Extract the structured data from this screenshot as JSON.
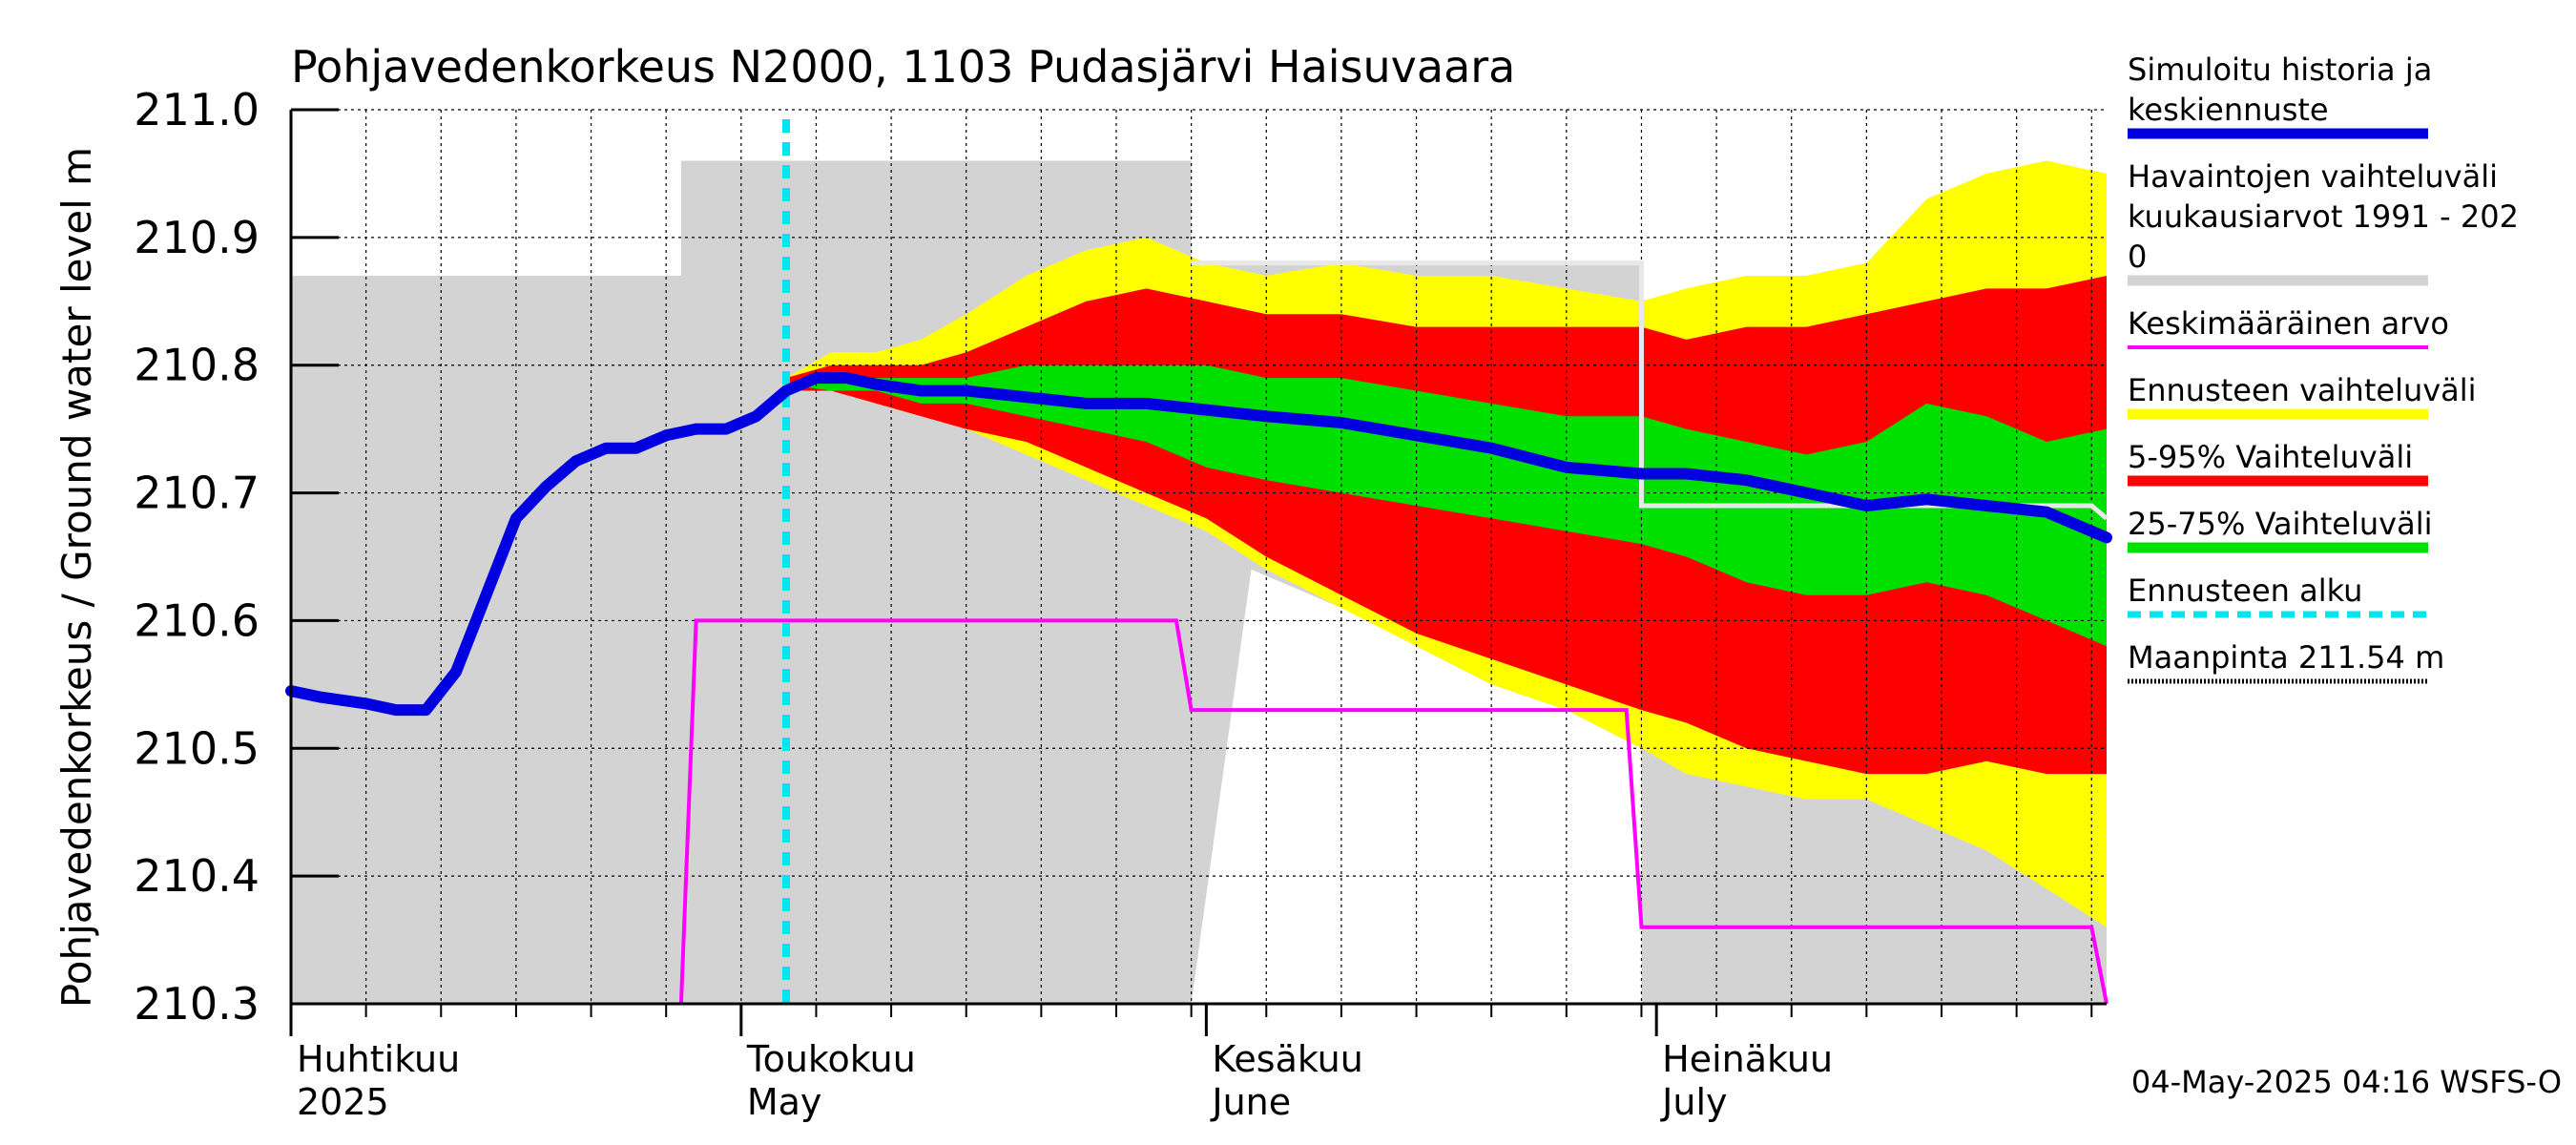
{
  "chart_data": {
    "type": "area",
    "title": "Pohjavedenkorkeus N2000, 1103 Pudasjärvi Haisuvaara",
    "ylabel": "Pohjavedenkorkeus / Ground water level   m",
    "ylim": [
      210.3,
      211.0
    ],
    "yticks": [
      "210.3",
      "210.4",
      "210.5",
      "210.6",
      "210.7",
      "210.8",
      "210.9",
      "211.0"
    ],
    "xlim": [
      "2025-04-01",
      "2025-07-31"
    ],
    "grid": true,
    "month_labels": [
      {
        "date": "2025-04-01",
        "line1": "Huhtikuu",
        "line2": "2025"
      },
      {
        "date": "2025-05-01",
        "line1": "Toukokuu",
        "line2": "May"
      },
      {
        "date": "2025-06-01",
        "line1": "Kesäkuu",
        "line2": "June"
      },
      {
        "date": "2025-07-01",
        "line1": "Heinäkuu",
        "line2": "July"
      }
    ],
    "forecast_start": "2025-05-04",
    "observed_range": {
      "name": "Havaintojen vaihteluväli kuukausiarvot 1991 - 2020",
      "upper": [
        [
          "2025-04-01",
          210.87
        ],
        [
          "2025-04-27",
          210.87
        ],
        [
          "2025-04-27",
          210.96
        ],
        [
          "2025-05-31",
          210.96
        ],
        [
          "2025-05-31",
          210.88
        ],
        [
          "2025-06-30",
          210.88
        ],
        [
          "2025-06-30",
          210.3
        ],
        [
          "2025-07-31",
          210.3
        ]
      ],
      "lower": [
        [
          "2025-04-01",
          210.3
        ],
        [
          "2025-05-31",
          210.3
        ],
        [
          "2025-06-04",
          210.64
        ],
        [
          "2025-06-12",
          210.6
        ],
        [
          "2025-06-20",
          210.56
        ],
        [
          "2025-06-30",
          210.51
        ],
        [
          "2025-07-10",
          210.48
        ],
        [
          "2025-07-20",
          210.44
        ],
        [
          "2025-07-31",
          210.39
        ]
      ]
    },
    "prediction_range": {
      "name": "Ennusteen vaihteluväli",
      "x": [
        "2025-05-04",
        "2025-05-07",
        "2025-05-10",
        "2025-05-13",
        "2025-05-16",
        "2025-05-20",
        "2025-05-24",
        "2025-05-28",
        "2025-06-01",
        "2025-06-05",
        "2025-06-10",
        "2025-06-15",
        "2025-06-20",
        "2025-06-25",
        "2025-06-30",
        "2025-07-03",
        "2025-07-07",
        "2025-07-11",
        "2025-07-15",
        "2025-07-19",
        "2025-07-23",
        "2025-07-27",
        "2025-07-31"
      ],
      "upper": [
        210.79,
        210.81,
        210.81,
        210.82,
        210.84,
        210.87,
        210.89,
        210.9,
        210.88,
        210.87,
        210.88,
        210.87,
        210.87,
        210.86,
        210.85,
        210.86,
        210.87,
        210.87,
        210.88,
        210.93,
        210.95,
        210.96,
        210.95
      ],
      "lower": [
        210.78,
        210.78,
        210.77,
        210.76,
        210.75,
        210.73,
        210.71,
        210.69,
        210.67,
        210.64,
        210.61,
        210.58,
        210.55,
        210.53,
        210.5,
        210.48,
        210.47,
        210.46,
        210.46,
        210.44,
        210.42,
        210.39,
        210.36
      ]
    },
    "p5_95": {
      "name": "5-95% Vaihteluväli",
      "x": [
        "2025-05-04",
        "2025-05-07",
        "2025-05-10",
        "2025-05-13",
        "2025-05-16",
        "2025-05-20",
        "2025-05-24",
        "2025-05-28",
        "2025-06-01",
        "2025-06-05",
        "2025-06-10",
        "2025-06-15",
        "2025-06-20",
        "2025-06-25",
        "2025-06-30",
        "2025-07-03",
        "2025-07-07",
        "2025-07-11",
        "2025-07-15",
        "2025-07-19",
        "2025-07-23",
        "2025-07-27",
        "2025-07-31"
      ],
      "upper": [
        210.79,
        210.8,
        210.8,
        210.8,
        210.81,
        210.83,
        210.85,
        210.86,
        210.85,
        210.84,
        210.84,
        210.83,
        210.83,
        210.83,
        210.83,
        210.82,
        210.83,
        210.83,
        210.84,
        210.85,
        210.86,
        210.86,
        210.87
      ],
      "lower": [
        210.78,
        210.78,
        210.77,
        210.76,
        210.75,
        210.74,
        210.72,
        210.7,
        210.68,
        210.65,
        210.62,
        210.59,
        210.57,
        210.55,
        210.53,
        210.52,
        210.5,
        210.49,
        210.48,
        210.48,
        210.49,
        210.48,
        210.48
      ]
    },
    "p25_75": {
      "name": "25-75% Vaihteluväli",
      "x": [
        "2025-05-04",
        "2025-05-07",
        "2025-05-10",
        "2025-05-13",
        "2025-05-16",
        "2025-05-20",
        "2025-05-24",
        "2025-05-28",
        "2025-06-01",
        "2025-06-05",
        "2025-06-10",
        "2025-06-15",
        "2025-06-20",
        "2025-06-25",
        "2025-06-30",
        "2025-07-03",
        "2025-07-07",
        "2025-07-11",
        "2025-07-15",
        "2025-07-19",
        "2025-07-23",
        "2025-07-27",
        "2025-07-31"
      ],
      "upper": [
        210.785,
        210.79,
        210.79,
        210.79,
        210.79,
        210.8,
        210.8,
        210.8,
        210.8,
        210.79,
        210.79,
        210.78,
        210.77,
        210.76,
        210.76,
        210.75,
        210.74,
        210.73,
        210.74,
        210.77,
        210.76,
        210.74,
        210.75
      ],
      "lower": [
        210.785,
        210.78,
        210.78,
        210.77,
        210.77,
        210.76,
        210.75,
        210.74,
        210.72,
        210.71,
        210.7,
        210.69,
        210.68,
        210.67,
        210.66,
        210.65,
        210.63,
        210.62,
        210.62,
        210.63,
        210.62,
        210.6,
        210.58
      ]
    },
    "simulated": {
      "name": "Simuloitu historia ja keskiennuste",
      "x": [
        "2025-04-01",
        "2025-04-03",
        "2025-04-06",
        "2025-04-08",
        "2025-04-10",
        "2025-04-12",
        "2025-04-14",
        "2025-04-16",
        "2025-04-18",
        "2025-04-20",
        "2025-04-22",
        "2025-04-24",
        "2025-04-26",
        "2025-04-28",
        "2025-04-30",
        "2025-05-02",
        "2025-05-04",
        "2025-05-06",
        "2025-05-08",
        "2025-05-10",
        "2025-05-13",
        "2025-05-16",
        "2025-05-20",
        "2025-05-24",
        "2025-05-28",
        "2025-06-01",
        "2025-06-05",
        "2025-06-10",
        "2025-06-15",
        "2025-06-20",
        "2025-06-25",
        "2025-06-30",
        "2025-07-03",
        "2025-07-07",
        "2025-07-11",
        "2025-07-15",
        "2025-07-19",
        "2025-07-23",
        "2025-07-27",
        "2025-07-31"
      ],
      "y": [
        210.545,
        210.54,
        210.535,
        210.53,
        210.53,
        210.56,
        210.62,
        210.68,
        210.705,
        210.725,
        210.735,
        210.735,
        210.745,
        210.75,
        210.75,
        210.76,
        210.78,
        210.79,
        210.79,
        210.785,
        210.78,
        210.78,
        210.775,
        210.77,
        210.77,
        210.765,
        210.76,
        210.755,
        210.745,
        210.735,
        210.72,
        210.715,
        210.715,
        210.71,
        210.7,
        210.69,
        210.695,
        210.69,
        210.685,
        210.665
      ]
    },
    "mean": {
      "name": "Keskimääräinen arvo",
      "x": [
        "2025-04-27",
        "2025-04-28",
        "2025-05-30",
        "2025-05-31",
        "2025-06-29",
        "2025-06-30",
        "2025-07-30",
        "2025-07-31"
      ],
      "y": [
        210.3,
        210.6,
        210.6,
        210.53,
        210.53,
        210.36,
        210.36,
        210.3
      ]
    },
    "observed_white_line": {
      "x": [
        "2025-05-31",
        "2025-06-30",
        "2025-06-30",
        "2025-07-30",
        "2025-07-31"
      ],
      "y": [
        210.88,
        210.88,
        210.69,
        210.69,
        210.68
      ]
    },
    "legend_position": "right",
    "legend": [
      {
        "key": "simulated",
        "lines": [
          "Simuloitu historia ja",
          "keskiennuste"
        ],
        "color": "#0000e0",
        "style": "thick"
      },
      {
        "key": "observed",
        "lines": [
          "Havaintojen vaihteluväli",
          " kuukausiarvot 1991 - 202",
          "0"
        ],
        "color": "#d3d3d3",
        "style": "thick"
      },
      {
        "key": "mean",
        "lines": [
          "Keskimääräinen arvo"
        ],
        "color": "#ff00ff",
        "style": "thin"
      },
      {
        "key": "prediction",
        "lines": [
          "Ennusteen vaihteluväli"
        ],
        "color": "#ffff00",
        "style": "thick"
      },
      {
        "key": "p5_95",
        "lines": [
          "5-95% Vaihteluväli"
        ],
        "color": "#ff0000",
        "style": "thick"
      },
      {
        "key": "p25_75",
        "lines": [
          "25-75% Vaihteluväli"
        ],
        "color": "#00e000",
        "style": "thick"
      },
      {
        "key": "forecast_start",
        "lines": [
          "Ennusteen alku"
        ],
        "color": "#00e5ee",
        "style": "dashed"
      },
      {
        "key": "ground",
        "lines": [
          "Maanpinta 211.54 m"
        ],
        "color": "#000000",
        "style": "dotted"
      }
    ],
    "colors": {
      "observed": "#d3d3d3",
      "prediction": "#ffff00",
      "p5_95": "#ff0000",
      "p25_75": "#00e000",
      "simulated": "#0000e0",
      "mean": "#ff00ff",
      "forecast_start": "#00e5ee",
      "white_line": "#e8e8e8"
    }
  },
  "footer": "04-May-2025 04:16 WSFS-O"
}
